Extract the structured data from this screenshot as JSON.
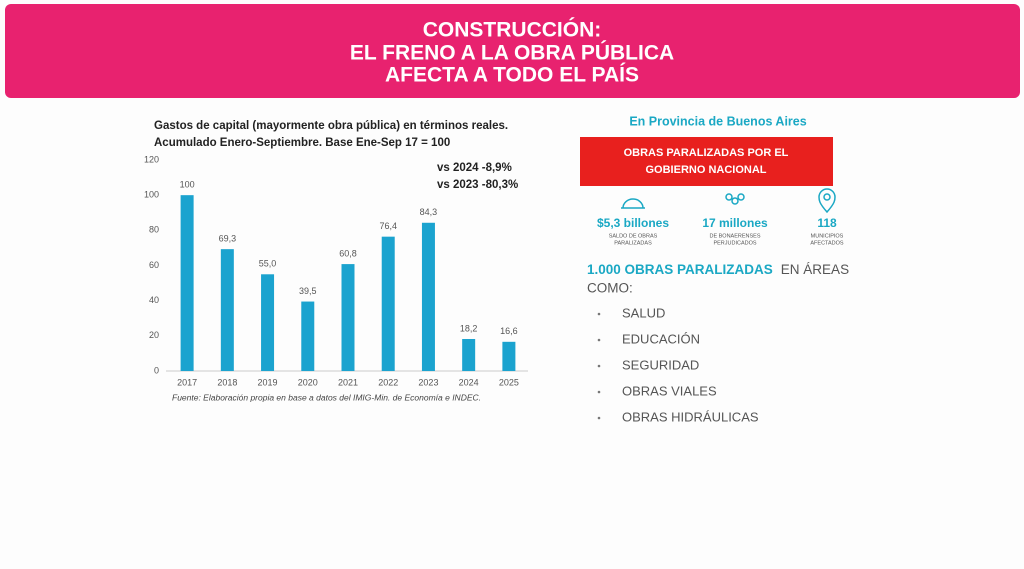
{
  "header": {
    "title_lines": [
      "CONSTRUCCIÓN:",
      "EL FRENO A LA OBRA PÚBLICA",
      "AFECTA A TODO EL PAÍS"
    ]
  },
  "chart_data": {
    "type": "bar",
    "title": "Gastos de capital (mayormente obra pública) en términos reales.",
    "subtitle": "Acumulado Enero-Septiembre. Base Ene-Sep 17 = 100",
    "annotations": [
      "vs 2024 -8,9%",
      "vs 2023 -80,3%"
    ],
    "categories": [
      "2017",
      "2018",
      "2019",
      "2020",
      "2021",
      "2022",
      "2023",
      "2024",
      "2025"
    ],
    "values": [
      100,
      69.3,
      55.0,
      39.5,
      60.8,
      76.4,
      84.3,
      18.2,
      16.6
    ],
    "value_labels": [
      "100",
      "69,3",
      "55,0",
      "39,5",
      "60,8",
      "76,4",
      "84,3",
      "18,2",
      "16,6"
    ],
    "color": "#1ba3cf",
    "ylim": [
      0,
      120
    ],
    "yticks": [
      0,
      20,
      40,
      60,
      80,
      100,
      120
    ],
    "grid": false,
    "source": "Fuente: Elaboración propia en base a datos del IMIG-Min. de Economía e INDEC."
  },
  "panel": {
    "heading": "En Provincia de Buenos Aires",
    "banner_lines": [
      "OBRAS PARALIZADAS POR EL",
      "GOBIERNO NACIONAL"
    ],
    "stats": [
      {
        "value": "$5,3 billones",
        "caption_lines": [
          "SALDO DE OBRAS",
          "PARALIZADAS"
        ]
      },
      {
        "value": "17 millones",
        "caption_lines": [
          "DE BONAERENSES",
          "PERJUDICADOS"
        ]
      },
      {
        "value": "118",
        "caption_lines": [
          "MUNICIPIOS",
          "AFECTADOS"
        ]
      }
    ],
    "highlight": "1.000 OBRAS PARALIZADAS",
    "rest_lines": [
      "EN ÁREAS",
      "COMO:"
    ],
    "areas": [
      "SALUD",
      "EDUCACIÓN",
      "SEGURIDAD",
      "OBRAS VIALES",
      "OBRAS HIDRÁULICAS"
    ]
  }
}
